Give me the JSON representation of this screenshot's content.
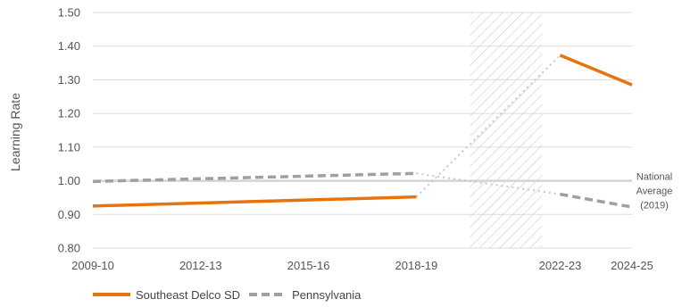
{
  "chart_data": {
    "type": "line",
    "title": "",
    "xlabel": "",
    "ylabel": "Learning Rate",
    "x_tick_labels": [
      {
        "label": "2009-10",
        "year": 2009
      },
      {
        "label": "2012-13",
        "year": 2012
      },
      {
        "label": "2015-16",
        "year": 2015
      },
      {
        "label": "2018-19",
        "year": 2018
      },
      {
        "label": "2022-23",
        "year": 2022
      },
      {
        "label": "2024-25",
        "year": 2024
      }
    ],
    "ylim": [
      0.8,
      1.5
    ],
    "y_ticks": [
      "0.80",
      "0.90",
      "1.00",
      "1.10",
      "1.20",
      "1.30",
      "1.40",
      "1.50"
    ],
    "grid": "horizontal",
    "legend_position": "bottom-left",
    "shaded_period": {
      "from_year": 2019.5,
      "to_year": 2021.5,
      "pattern": "diagonal-hatch"
    },
    "reference_line": {
      "value": 1.0,
      "label_lines": [
        "National",
        "Average",
        "(2019)"
      ]
    },
    "series": [
      {
        "name": "Southeast Delco SD",
        "color": "#e8730c",
        "style": "solid",
        "segments": [
          [
            {
              "year": 2009,
              "value": 0.925
            },
            {
              "year": 2018,
              "value": 0.952
            }
          ],
          [
            {
              "year": 2022,
              "value": 1.373
            },
            {
              "year": 2024,
              "value": 1.285
            }
          ]
        ],
        "bridge": [
          {
            "year": 2018,
            "value": 0.952
          },
          {
            "year": 2022,
            "value": 1.373
          }
        ]
      },
      {
        "name": "Pennsylvania",
        "color": "#9aa1ab",
        "style": "dashed",
        "segments": [
          [
            {
              "year": 2009,
              "value": 0.998
            },
            {
              "year": 2018,
              "value": 1.022
            }
          ],
          [
            {
              "year": 2022,
              "value": 0.96
            },
            {
              "year": 2024,
              "value": 0.922
            }
          ]
        ],
        "bridge": [
          {
            "year": 2018,
            "value": 1.022
          },
          {
            "year": 2022,
            "value": 0.96
          }
        ]
      }
    ]
  },
  "colors": {
    "grid": "#dcdcdc",
    "reference": "#d4d4d4",
    "hatch": "#cccccc",
    "bridge": "#c8c8c8"
  }
}
